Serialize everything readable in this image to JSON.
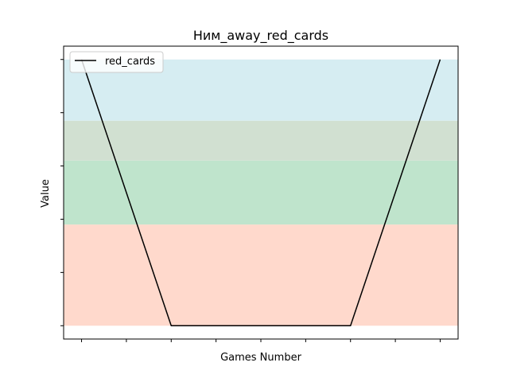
{
  "chart_data": {
    "type": "line",
    "title": "Ним_away_red_cards",
    "xlabel": "Games Number",
    "ylabel": "Value",
    "x": [
      0,
      1,
      2,
      3,
      4,
      5,
      6,
      7,
      8
    ],
    "xlim": [
      -0.4,
      8.4
    ],
    "series": [
      {
        "name": "red_cards",
        "color": "#000000",
        "values": [
          1.0,
          0.5,
          0.0,
          0.0,
          0.0,
          0.0,
          0.0,
          0.5,
          1.0
        ]
      }
    ],
    "ylim": [
      -0.05,
      1.05
    ],
    "y_ticks": [
      0.0,
      0.2,
      0.4,
      0.6,
      0.8,
      1.0
    ],
    "tick_labels_visible": false,
    "bands": [
      {
        "from": 0.0,
        "to": 0.38,
        "color": "#ffd9cc"
      },
      {
        "from": 0.38,
        "to": 0.62,
        "color": "#bfe4cc"
      },
      {
        "from": 0.62,
        "to": 0.77,
        "color": "#d1e0d1"
      },
      {
        "from": 0.77,
        "to": 1.0,
        "color": "#d6edf2"
      }
    ],
    "legend": {
      "placement": "top-left"
    },
    "grid": false
  }
}
